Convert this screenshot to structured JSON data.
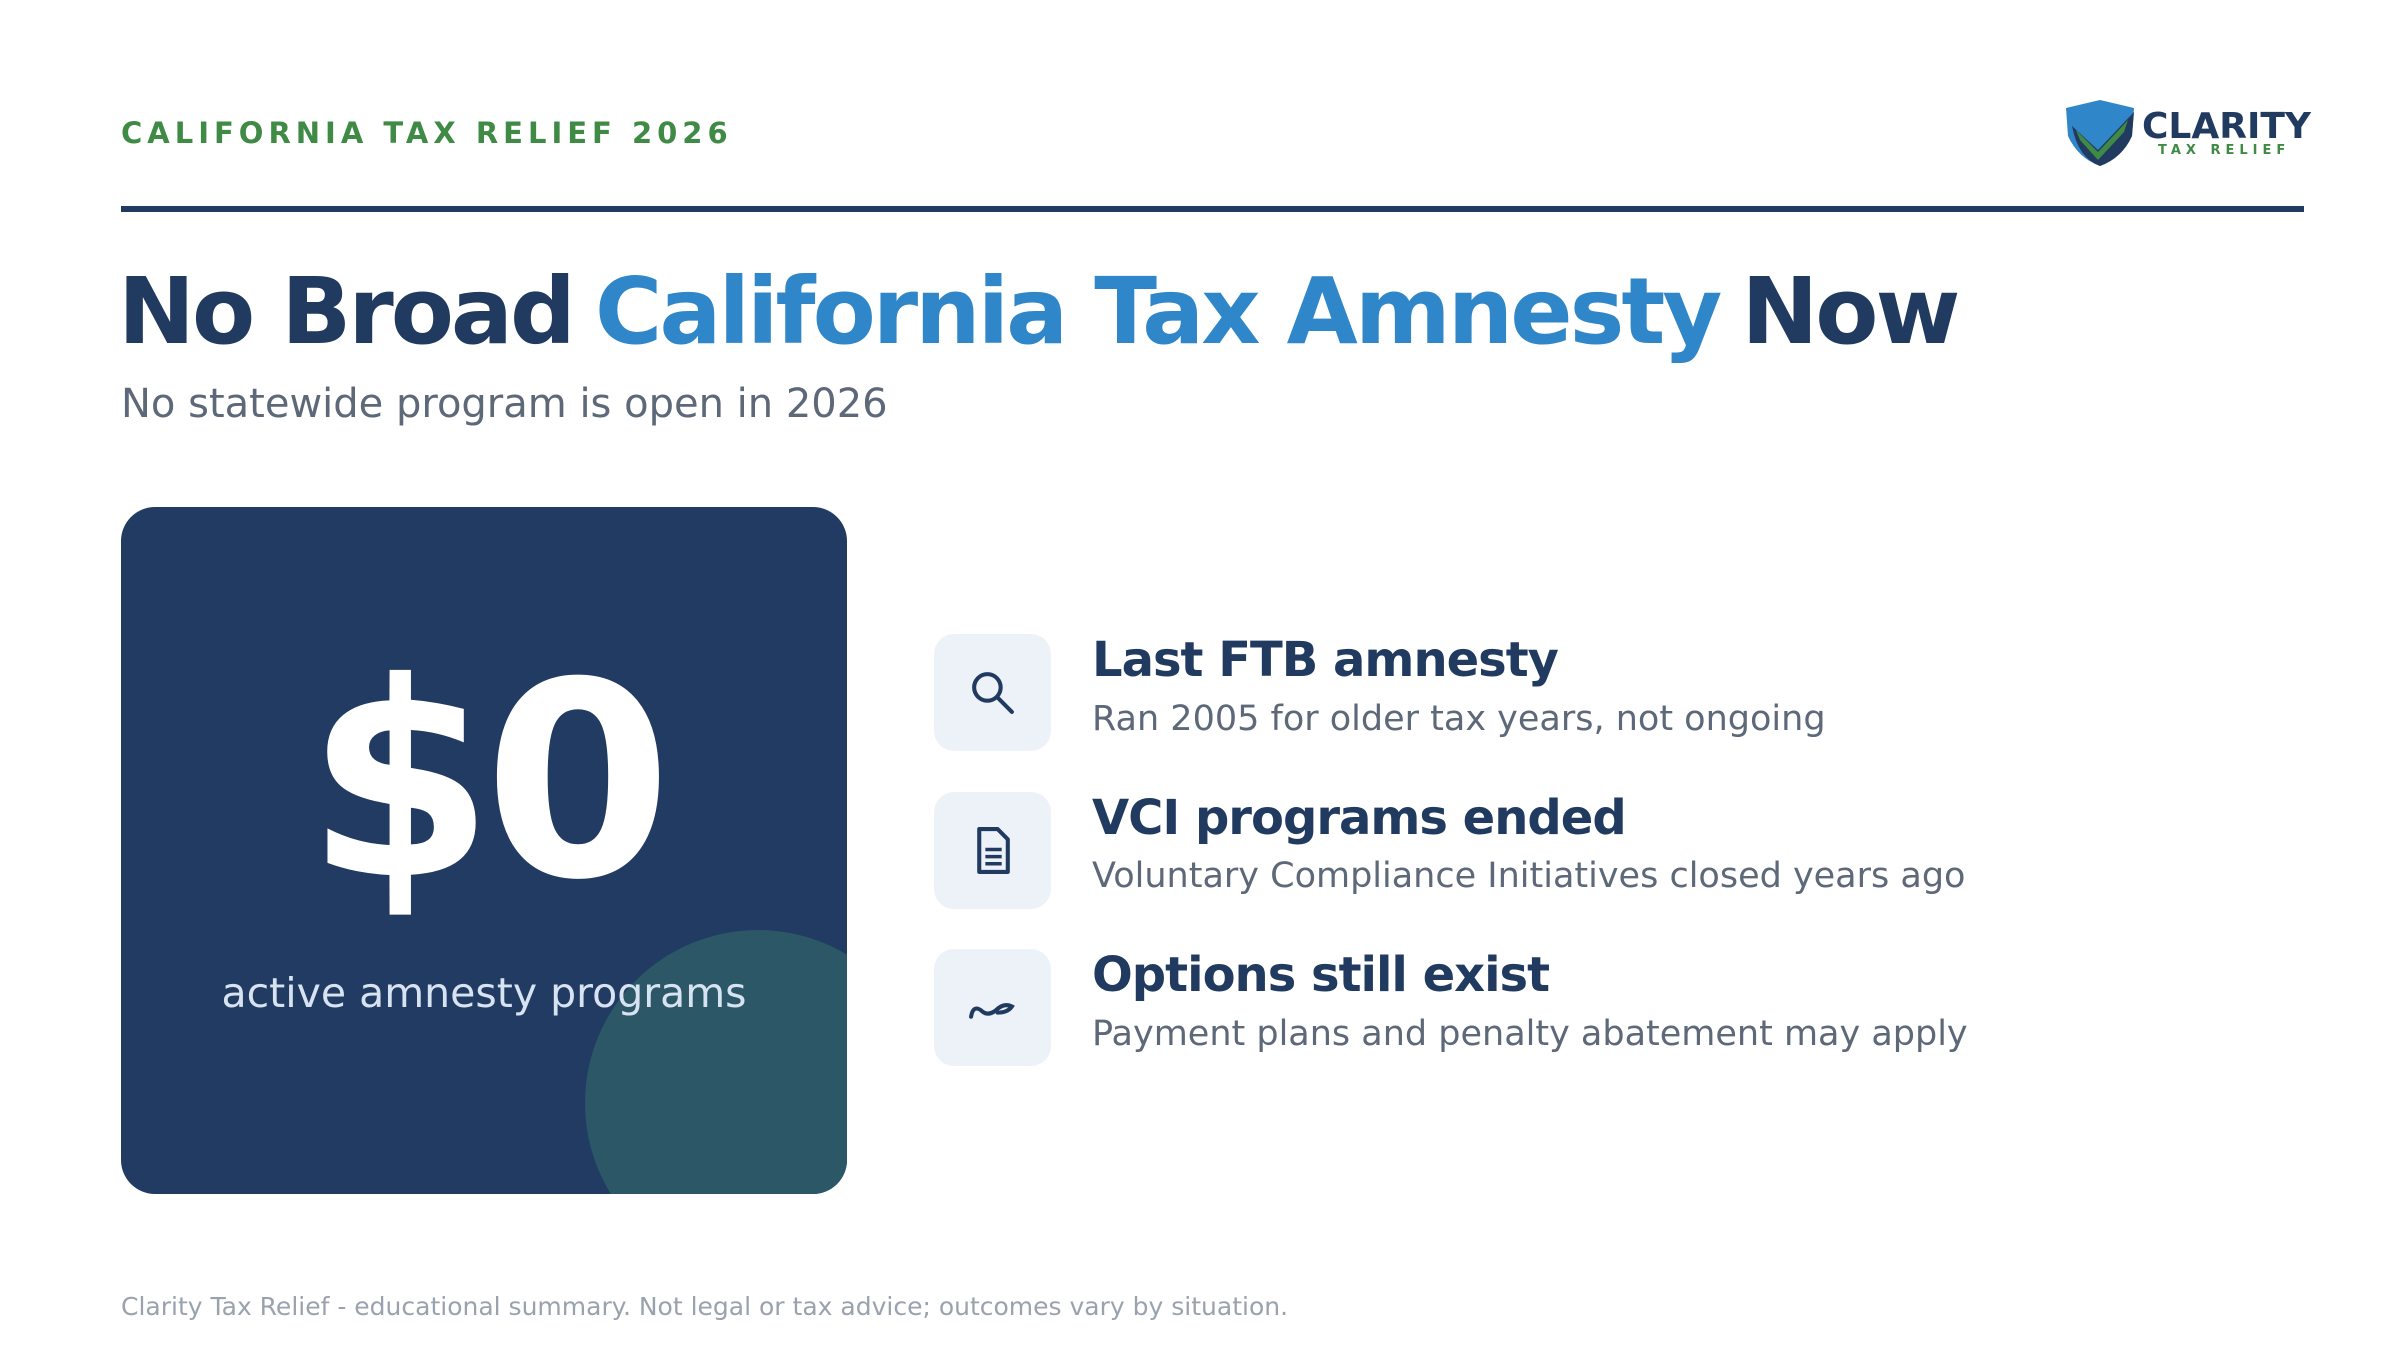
{
  "header": {
    "eyebrow": "CALIFORNIA TAX RELIEF 2026"
  },
  "logo": {
    "name": "CLARITY",
    "tagline": "TAX RELIEF"
  },
  "title": {
    "parts": [
      "No Broad",
      "California Tax Amnesty",
      "Now"
    ]
  },
  "subtitle": "No statewide program is open in 2026",
  "stat": {
    "value": "$0",
    "label": "active amnesty programs"
  },
  "items": [
    {
      "title": "Last FTB amnesty",
      "description": "Ran 2005 for older tax years, not ongoing"
    },
    {
      "title": "VCI programs ended",
      "description": "Voluntary Compliance Initiatives closed years ago"
    },
    {
      "title": "Options still exist",
      "description": "Payment plans and penalty abatement may apply"
    }
  ],
  "footer": "Clarity Tax Relief - educational summary. Not legal or tax advice; outcomes vary by situation."
}
